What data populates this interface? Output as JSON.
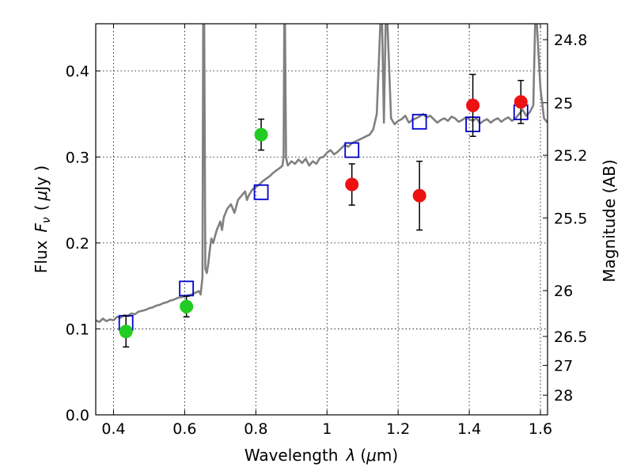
{
  "chart_data": {
    "type": "scatter",
    "xlabel_text": "Wavelength",
    "xlabel_symbol": "λ",
    "xlabel_unit_open": "(",
    "xlabel_mu": "μ",
    "xlabel_unit_rest": "m)",
    "ylabel_text": "Flux",
    "ylabel_symbol_F": "F",
    "ylabel_symbol_nu": "ν",
    "ylabel_unit_open": "(",
    "ylabel_mu": "μ",
    "ylabel_unit_rest": "Jy )",
    "right_ylabel": "Magnitude (AB)",
    "xlim": [
      0.35,
      1.62
    ],
    "ylim": [
      0.0,
      0.455
    ],
    "x_ticks": [
      {
        "value": 0.4,
        "label": "0.4"
      },
      {
        "value": 0.6,
        "label": "0.6"
      },
      {
        "value": 0.8,
        "label": "0.8"
      },
      {
        "value": 1.0,
        "label": "1"
      },
      {
        "value": 1.2,
        "label": "1.2"
      },
      {
        "value": 1.4,
        "label": "1.4"
      },
      {
        "value": 1.6,
        "label": "1.6"
      }
    ],
    "y_ticks": [
      {
        "value": 0.0,
        "label": "0.0"
      },
      {
        "value": 0.1,
        "label": "0.1"
      },
      {
        "value": 0.2,
        "label": "0.2"
      },
      {
        "value": 0.3,
        "label": "0.3"
      },
      {
        "value": 0.4,
        "label": "0.4"
      }
    ],
    "right_ticks": [
      {
        "flux": 0.4365,
        "label": "24.8"
      },
      {
        "flux": 0.3631,
        "label": "25"
      },
      {
        "flux": 0.302,
        "label": "25.2"
      },
      {
        "flux": 0.2291,
        "label": "25.5"
      },
      {
        "flux": 0.1445,
        "label": "26"
      },
      {
        "flux": 0.0912,
        "label": "26.5"
      },
      {
        "flux": 0.0575,
        "label": "27"
      },
      {
        "flux": 0.0229,
        "label": "28"
      }
    ],
    "grid": true,
    "series": [
      {
        "name": "model_spectrum",
        "kind": "line",
        "color": "#808080",
        "x": [
          0.35,
          0.36,
          0.37,
          0.38,
          0.39,
          0.4,
          0.41,
          0.42,
          0.43,
          0.44,
          0.45,
          0.46,
          0.47,
          0.48,
          0.49,
          0.5,
          0.51,
          0.52,
          0.53,
          0.54,
          0.55,
          0.56,
          0.57,
          0.58,
          0.59,
          0.6,
          0.61,
          0.62,
          0.63,
          0.64,
          0.645,
          0.65,
          0.652,
          0.655,
          0.658,
          0.662,
          0.666,
          0.67,
          0.675,
          0.68,
          0.69,
          0.7,
          0.705,
          0.71,
          0.72,
          0.73,
          0.74,
          0.75,
          0.76,
          0.77,
          0.775,
          0.78,
          0.79,
          0.8,
          0.81,
          0.82,
          0.83,
          0.84,
          0.85,
          0.86,
          0.87,
          0.875,
          0.878,
          0.88,
          0.882,
          0.885,
          0.888,
          0.89,
          0.9,
          0.91,
          0.92,
          0.93,
          0.94,
          0.95,
          0.96,
          0.97,
          0.98,
          0.99,
          1.0,
          1.01,
          1.02,
          1.03,
          1.04,
          1.05,
          1.06,
          1.07,
          1.08,
          1.09,
          1.1,
          1.11,
          1.12,
          1.13,
          1.14,
          1.15,
          1.155,
          1.16,
          1.165,
          1.17,
          1.18,
          1.19,
          1.2,
          1.21,
          1.22,
          1.23,
          1.24,
          1.25,
          1.26,
          1.27,
          1.28,
          1.29,
          1.3,
          1.31,
          1.32,
          1.33,
          1.34,
          1.35,
          1.36,
          1.37,
          1.38,
          1.39,
          1.4,
          1.41,
          1.42,
          1.43,
          1.44,
          1.45,
          1.46,
          1.47,
          1.48,
          1.49,
          1.5,
          1.51,
          1.52,
          1.53,
          1.54,
          1.55,
          1.56,
          1.57,
          1.58,
          1.585,
          1.59,
          1.6,
          1.61,
          1.62
        ],
        "y": [
          0.11,
          0.108,
          0.112,
          0.109,
          0.111,
          0.11,
          0.114,
          0.113,
          0.116,
          0.115,
          0.118,
          0.117,
          0.12,
          0.121,
          0.122,
          0.124,
          0.125,
          0.127,
          0.128,
          0.13,
          0.131,
          0.133,
          0.134,
          0.136,
          0.137,
          0.138,
          0.139,
          0.14,
          0.142,
          0.144,
          0.14,
          0.16,
          0.455,
          0.455,
          0.17,
          0.165,
          0.175,
          0.19,
          0.205,
          0.2,
          0.215,
          0.225,
          0.215,
          0.23,
          0.24,
          0.245,
          0.235,
          0.25,
          0.255,
          0.26,
          0.25,
          0.255,
          0.262,
          0.265,
          0.268,
          0.272,
          0.275,
          0.278,
          0.282,
          0.285,
          0.288,
          0.29,
          0.3,
          0.455,
          0.455,
          0.3,
          0.293,
          0.29,
          0.295,
          0.292,
          0.297,
          0.293,
          0.298,
          0.29,
          0.295,
          0.292,
          0.299,
          0.3,
          0.305,
          0.308,
          0.303,
          0.306,
          0.31,
          0.314,
          0.312,
          0.316,
          0.318,
          0.32,
          0.322,
          0.324,
          0.326,
          0.332,
          0.35,
          0.455,
          0.455,
          0.34,
          0.455,
          0.455,
          0.345,
          0.338,
          0.342,
          0.344,
          0.348,
          0.34,
          0.343,
          0.345,
          0.347,
          0.35,
          0.346,
          0.348,
          0.344,
          0.34,
          0.343,
          0.345,
          0.342,
          0.347,
          0.345,
          0.341,
          0.343,
          0.346,
          0.344,
          0.342,
          0.345,
          0.339,
          0.342,
          0.344,
          0.34,
          0.343,
          0.345,
          0.341,
          0.344,
          0.346,
          0.342,
          0.345,
          0.35,
          0.355,
          0.348,
          0.352,
          0.36,
          0.455,
          0.455,
          0.38,
          0.345,
          0.34
        ]
      },
      {
        "name": "model_photometry",
        "kind": "open_square",
        "color": "#0000cc",
        "x": [
          0.435,
          0.605,
          0.815,
          1.07,
          1.26,
          1.41,
          1.545
        ],
        "y": [
          0.107,
          0.147,
          0.259,
          0.308,
          0.341,
          0.338,
          0.352
        ]
      },
      {
        "name": "optical_detections",
        "kind": "filled_circle",
        "color": "#22cc22",
        "x": [
          0.435,
          0.605,
          0.815
        ],
        "y": [
          0.097,
          0.126,
          0.326
        ],
        "yerr": [
          0.018,
          0.012,
          0.018
        ]
      },
      {
        "name": "infrared_detections",
        "kind": "filled_circle",
        "color": "#ee1111",
        "x": [
          1.07,
          1.26,
          1.41,
          1.545
        ],
        "y": [
          0.268,
          0.255,
          0.36,
          0.364
        ],
        "yerr": [
          0.024,
          0.04,
          0.036,
          0.025
        ]
      }
    ]
  }
}
